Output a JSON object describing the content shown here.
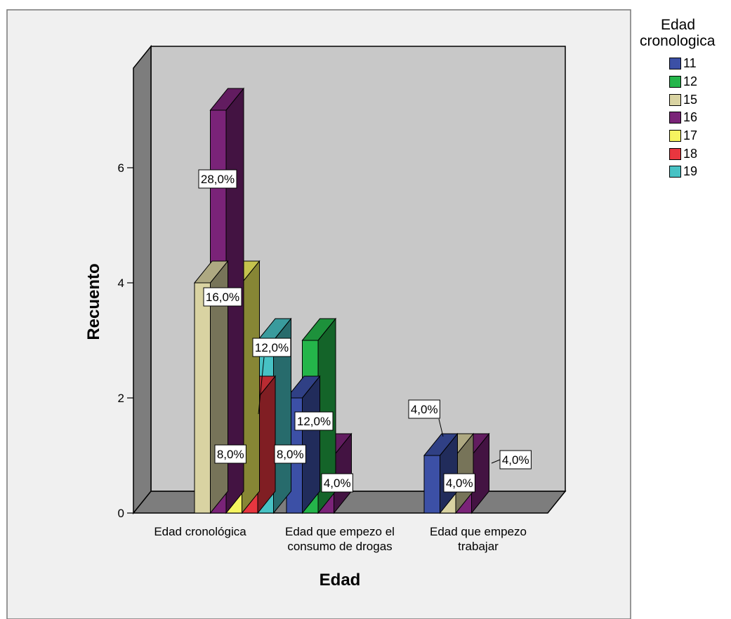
{
  "chart_data": {
    "type": "bar",
    "style": "3d-clustered",
    "xlabel": "Edad",
    "ylabel": "Recuento",
    "ylim": [
      0,
      7
    ],
    "yticks": [
      0,
      2,
      4,
      6
    ],
    "categories": [
      "Edad cronológica",
      "Edad que empezo el consumo de drogas",
      "Edad que empezo trabajar"
    ],
    "category_labels": [
      [
        "Edad cronológica"
      ],
      [
        "Edad que empezo el",
        "consumo de drogas"
      ],
      [
        "Edad que empezo",
        "trabajar"
      ]
    ],
    "legend": {
      "title_lines": [
        "Edad",
        "cronologica"
      ],
      "position": "right"
    },
    "series": [
      {
        "name": "11",
        "color": "#3c50a6",
        "values": [
          0,
          2,
          1
        ],
        "labels": [
          "",
          "8,0%",
          "4,0%"
        ]
      },
      {
        "name": "12",
        "color": "#24b54a",
        "values": [
          0,
          3,
          0
        ],
        "labels": [
          "",
          "12,0%",
          ""
        ]
      },
      {
        "name": "15",
        "color": "#d9d3a2",
        "values": [
          4,
          0,
          1
        ],
        "labels": [
          "16,0%",
          "",
          "4,0%"
        ]
      },
      {
        "name": "16",
        "color": "#7a2378",
        "values": [
          7,
          1,
          1
        ],
        "labels": [
          "28,0%",
          "4,0%",
          "4,0%"
        ]
      },
      {
        "name": "17",
        "color": "#f6f460",
        "values": [
          4,
          0,
          0
        ],
        "labels": [
          "16,0%",
          "",
          ""
        ]
      },
      {
        "name": "18",
        "color": "#e8363f",
        "values": [
          2,
          0,
          0
        ],
        "labels": [
          "8,0%",
          "",
          ""
        ]
      },
      {
        "name": "19",
        "color": "#47c2c4",
        "values": [
          3,
          0,
          0
        ],
        "labels": [
          "12,0%",
          "",
          ""
        ]
      }
    ]
  }
}
